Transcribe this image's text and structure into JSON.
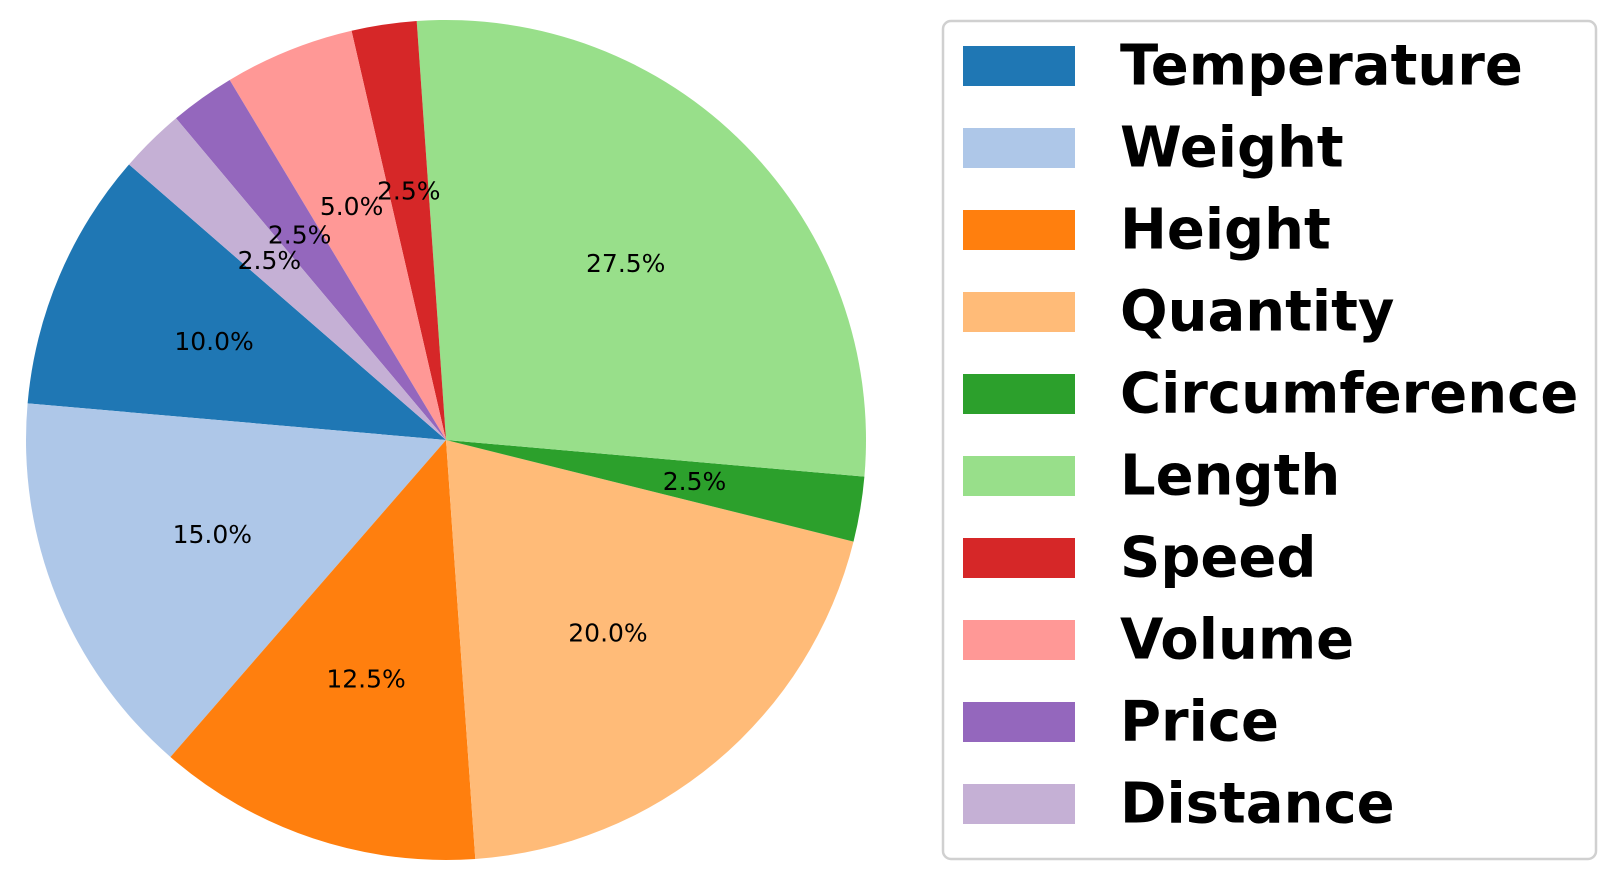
{
  "chart_data": {
    "type": "pie",
    "title": "",
    "categories": [
      "Temperature",
      "Weight",
      "Height",
      "Quantity",
      "Circumference",
      "Length",
      "Speed",
      "Volume",
      "Price",
      "Distance"
    ],
    "values": [
      10.0,
      15.0,
      12.5,
      20.0,
      2.5,
      27.5,
      2.5,
      5.0,
      2.5,
      2.5
    ],
    "labels": [
      "10.0%",
      "15.0%",
      "12.5%",
      "20.0%",
      "2.5%",
      "27.5%",
      "2.5%",
      "5.0%",
      "2.5%",
      "2.5%"
    ],
    "colors": [
      "#1f77b4",
      "#aec7e8",
      "#ff7f0e",
      "#ffbb78",
      "#2ca02c",
      "#98df8a",
      "#d62728",
      "#ff9896",
      "#9467bd",
      "#c5b0d5"
    ],
    "start_angle_deg": 139,
    "direction": "counterclockwise",
    "legend": {
      "placement": "right",
      "entries": [
        "Temperature",
        "Weight",
        "Height",
        "Quantity",
        "Circumference",
        "Length",
        "Speed",
        "Volume",
        "Price",
        "Distance"
      ]
    }
  }
}
